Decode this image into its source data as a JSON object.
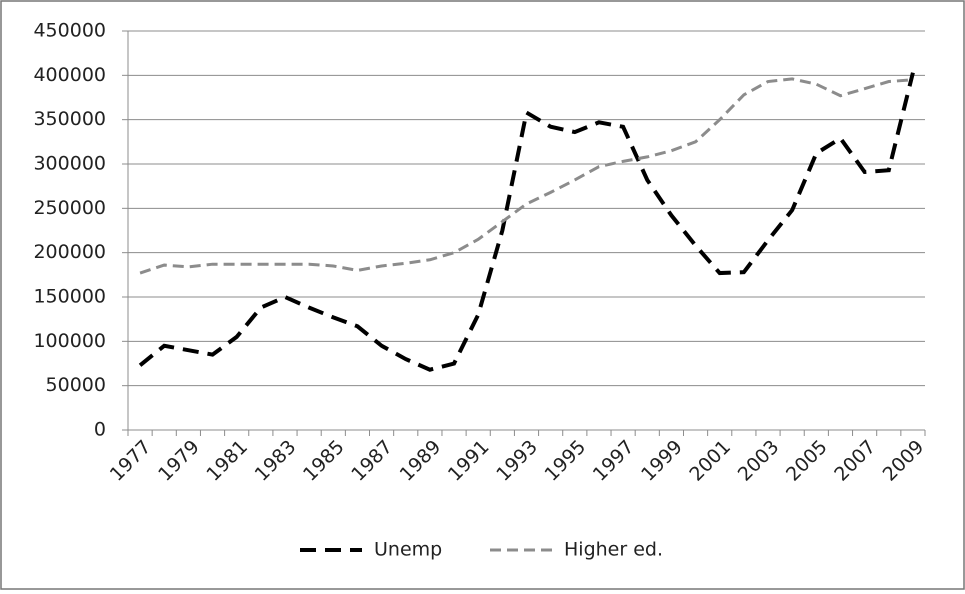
{
  "chart_data": {
    "type": "line",
    "categories": [
      "1977",
      null,
      "1979",
      null,
      "1981",
      null,
      "1983",
      null,
      "1985",
      null,
      "1987",
      null,
      "1989",
      null,
      "1991",
      null,
      "1993",
      null,
      "1995",
      null,
      "1997",
      null,
      "1999",
      null,
      "2001",
      null,
      "2003",
      null,
      "2005",
      null,
      "2007",
      null,
      "2009"
    ],
    "series": [
      {
        "name": "Unemp",
        "color": "#000000",
        "values": [
          73000,
          95000,
          90000,
          85000,
          105000,
          138000,
          150000,
          138000,
          127000,
          117000,
          95000,
          80000,
          68000,
          75000,
          130000,
          225000,
          358000,
          342000,
          336000,
          347000,
          342000,
          282000,
          242000,
          208000,
          177000,
          178000,
          214000,
          248000,
          312000,
          329000,
          291000,
          293000,
          403000
        ]
      },
      {
        "name": "Higher ed.",
        "color": "#8c8c8c",
        "values": [
          177000,
          186000,
          184000,
          187000,
          187000,
          187000,
          187000,
          187000,
          185000,
          180000,
          185000,
          188000,
          192000,
          200000,
          215000,
          235000,
          255000,
          268000,
          282000,
          297000,
          303000,
          308000,
          315000,
          325000,
          350000,
          378000,
          393000,
          396000,
          390000,
          377000,
          385000,
          393000,
          395000
        ]
      }
    ],
    "ylim": [
      0,
      450000
    ],
    "yticks": [
      0,
      50000,
      100000,
      150000,
      200000,
      250000,
      300000,
      350000,
      400000,
      450000
    ],
    "grid": true,
    "legend": "bottom"
  }
}
